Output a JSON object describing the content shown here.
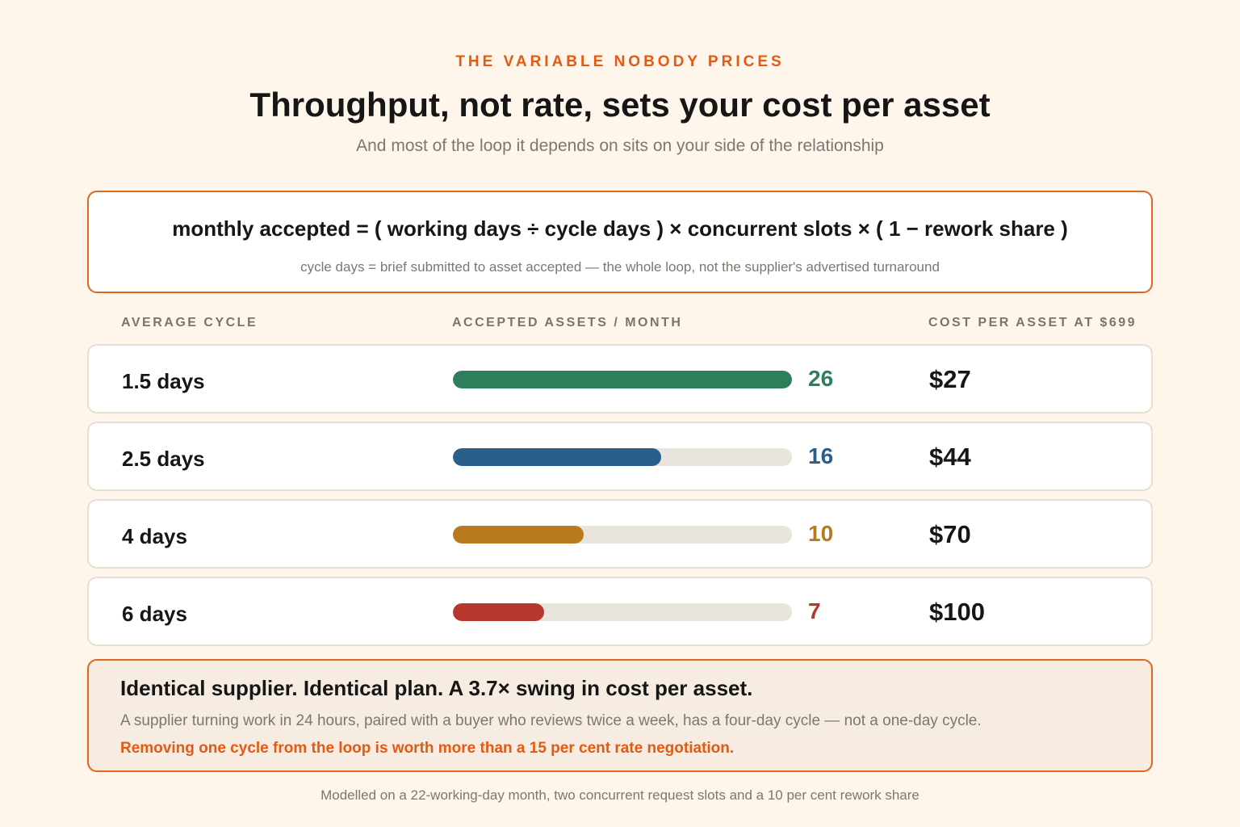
{
  "header": {
    "eyebrow": "THE VARIABLE NOBODY PRICES",
    "title": "Throughput, not rate, sets your cost per asset",
    "subtitle": "And most of the loop it depends on sits on your side of the relationship"
  },
  "formula": {
    "main": "monthly accepted = ( working days ÷ cycle days ) × concurrent slots × ( 1 − rework share )",
    "note": "cycle days = brief submitted to asset accepted — the whole loop, not the supplier's advertised turnaround"
  },
  "chart_data": {
    "type": "bar",
    "orientation": "horizontal",
    "columns": [
      "AVERAGE CYCLE",
      "ACCEPTED ASSETS / MONTH",
      "COST PER ASSET AT $699"
    ],
    "categories": [
      "1.5 days",
      "2.5 days",
      "4 days",
      "6 days"
    ],
    "values": [
      26,
      16,
      10,
      7
    ],
    "value_labels": [
      "26",
      "16",
      "10",
      "7"
    ],
    "costs": [
      "$27",
      "$44",
      "$70",
      "$100"
    ],
    "colors": [
      "#2e7d5b",
      "#2a5f8c",
      "#b97a1f",
      "#b8372d"
    ],
    "xlim": [
      0,
      26
    ],
    "grid": false
  },
  "callout": {
    "headline": "Identical supplier. Identical plan. A 3.7× swing in cost per asset.",
    "body": "A supplier turning work in 24 hours, paired with a buyer who reviews twice a week, has a four-day cycle — not a one-day cycle.",
    "emphasis": "Removing one cycle from the loop is worth more than a 15 per cent rate negotiation."
  },
  "footnote": "Modelled on a 22-working-day month, two concurrent request slots and a 10 per cent rework share"
}
